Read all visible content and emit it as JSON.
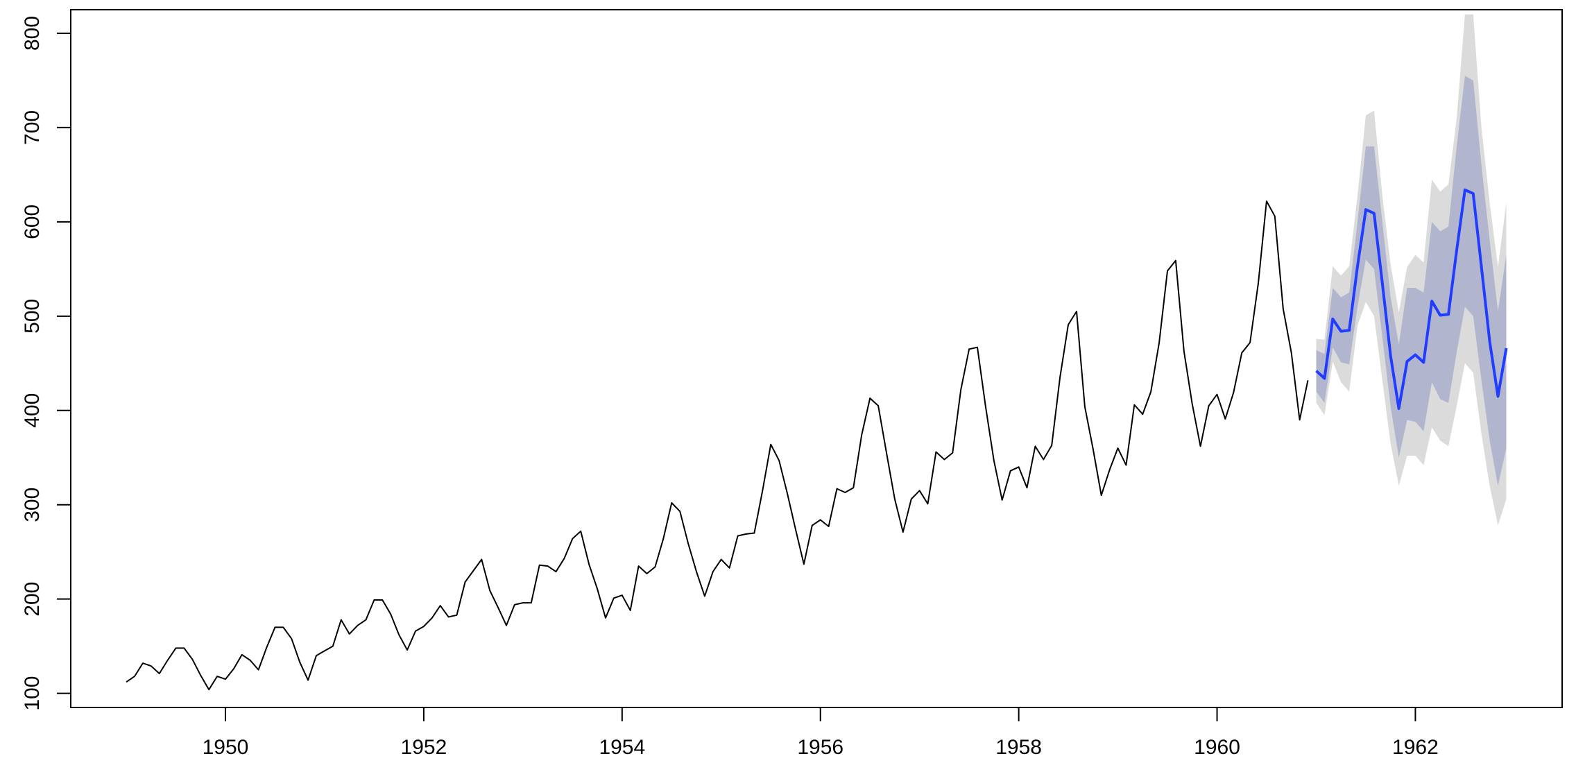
{
  "chart_data": {
    "type": "line",
    "title": "",
    "xlabel": "",
    "ylabel": "",
    "xlim": [
      1948.44,
      1963.48
    ],
    "ylim": [
      85,
      825
    ],
    "x_ticks": [
      1950,
      1952,
      1954,
      1956,
      1958,
      1960,
      1962
    ],
    "y_ticks": [
      100,
      200,
      300,
      400,
      500,
      600,
      700,
      800
    ],
    "x_tick_labels": [
      "1950",
      "1952",
      "1954",
      "1956",
      "1958",
      "1960",
      "1962"
    ],
    "y_tick_labels": [
      "100",
      "200",
      "300",
      "400",
      "500",
      "600",
      "700",
      "800"
    ],
    "grid": false,
    "legend": "none",
    "colors": {
      "observed": "#000000",
      "forecast": "#1f3cff",
      "band_80": "#b1b5ce",
      "band_95": "#dbdbdb",
      "axes": "#000000"
    },
    "series": [
      {
        "role": "observed",
        "x_start": 1949.0,
        "step": 0.08333,
        "values": [
          112,
          118,
          132,
          129,
          121,
          135,
          148,
          148,
          136,
          119,
          104,
          118,
          115,
          126,
          141,
          135,
          125,
          149,
          170,
          170,
          158,
          133,
          114,
          140,
          145,
          150,
          178,
          163,
          172,
          178,
          199,
          199,
          184,
          162,
          146,
          166,
          171,
          180,
          193,
          181,
          183,
          218,
          230,
          242,
          209,
          191,
          172,
          194,
          196,
          196,
          236,
          235,
          229,
          243,
          264,
          272,
          237,
          211,
          180,
          201,
          204,
          188,
          235,
          227,
          234,
          264,
          302,
          293,
          259,
          229,
          203,
          229,
          242,
          233,
          267,
          269,
          270,
          315,
          364,
          347,
          312,
          274,
          237,
          278,
          284,
          277,
          317,
          313,
          318,
          374,
          413,
          405,
          355,
          306,
          271,
          306,
          315,
          301,
          356,
          348,
          355,
          422,
          465,
          467,
          404,
          347,
          305,
          336,
          340,
          318,
          362,
          348,
          363,
          435,
          491,
          505,
          404,
          359,
          310,
          337,
          360,
          342,
          406,
          396,
          420,
          472,
          548,
          559,
          463,
          407,
          362,
          405,
          417,
          391,
          419,
          461,
          472,
          535,
          622,
          606,
          508,
          461,
          390,
          432
        ]
      },
      {
        "role": "forecast",
        "x_start": 1961.0,
        "step": 0.08333,
        "values": [
          442,
          434,
          497,
          484,
          485,
          553,
          613,
          609,
          535,
          458,
          402,
          452,
          459,
          451,
          516,
          501,
          502,
          570,
          634,
          630,
          552,
          473,
          415,
          466
        ],
        "lo80": [
          420,
          408,
          467,
          451,
          449,
          510,
          560,
          550,
          478,
          404,
          350,
          390,
          388,
          378,
          430,
          412,
          408,
          462,
          510,
          500,
          432,
          368,
          320,
          360
        ],
        "hi80": [
          464,
          460,
          530,
          520,
          525,
          600,
          680,
          680,
          600,
          520,
          470,
          530,
          530,
          525,
          600,
          590,
          595,
          680,
          755,
          750,
          660,
          580,
          505,
          565
        ],
        "lo95": [
          408,
          395,
          452,
          430,
          420,
          490,
          515,
          500,
          432,
          365,
          320,
          352,
          352,
          342,
          382,
          368,
          362,
          405,
          450,
          440,
          375,
          320,
          278,
          306
        ],
        "hi95": [
          476,
          475,
          553,
          543,
          553,
          628,
          713,
          718,
          628,
          555,
          504,
          552,
          565,
          557,
          645,
          632,
          640,
          710,
          820,
          820,
          700,
          620,
          552,
          620
        ]
      }
    ]
  }
}
